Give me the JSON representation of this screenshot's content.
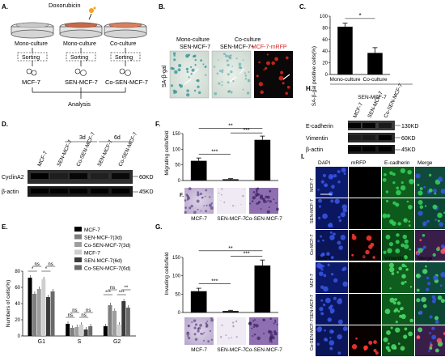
{
  "figure": {
    "panel_letters": {
      "A": "A.",
      "B": "B.",
      "C": "C.",
      "D": "D.",
      "E": "E.",
      "F": "F.",
      "G": "G.",
      "H": "H.",
      "I": "I."
    }
  },
  "panelA": {
    "drug": "Doxorubicin",
    "dish_labels": [
      "Mono-culture",
      "Mono-culture",
      "Co-culture"
    ],
    "sorting": [
      "Sorting",
      "Sorting",
      "Sorting"
    ],
    "cell_labels": [
      "MCF-7",
      "SEN-MCF-7",
      "Co-SEN-MCF-7"
    ],
    "analysis": "Analysis"
  },
  "panelB": {
    "header_mono_line1": "Mono-culture",
    "header_mono_line2": "SEN-MCF-7",
    "header_co_line1": "Co-culture",
    "header_co_line2a": "SEN-MCF-7+",
    "header_co_line2b": "MCF-7-mRFP",
    "ylabel": "SA-β-gal"
  },
  "panelC": {
    "ylabel": "SA-β-gal positive cells(%)",
    "ticks": [
      "0",
      "20",
      "40",
      "60",
      "80",
      "100"
    ],
    "group_label": "SEN-MCF-7",
    "sig": "*",
    "colors": {
      "bar": "#000000"
    }
  },
  "panelD": {
    "lanes": [
      "MCF-7",
      "SEN-MCF-7",
      "Co-SEN-MCF-7",
      "SEN-MCF-7",
      "Co-SEN-MCF-7"
    ],
    "group_3d": "3d",
    "group_6d": "6d",
    "rows": [
      "CyclinA2",
      "β-actin"
    ],
    "kd": [
      "60KD",
      "45KD"
    ]
  },
  "panelH": {
    "lanes": [
      "MCF-7",
      "SEN-MCF-7",
      "Co-SEN-MCF-7"
    ],
    "rows": [
      "E-cadherin",
      "Vimentin",
      "β-actin"
    ],
    "kd": [
      "130KD",
      "60KD",
      "45KD"
    ]
  },
  "panelE": {
    "ylabel": "Numbers of cells(%)",
    "ticks": [
      "0",
      "20",
      "40",
      "60",
      "80"
    ],
    "legend": [
      "MCF-7",
      "SEN-MCF-7(3d)",
      "Co-SEN-MCF-7(3d)",
      "MCF-7",
      "SEN-MCF-7(6d)",
      "Co-SEN-MCF-7(6d)"
    ],
    "colors": [
      "#000000",
      "#7f7f7f",
      "#9e9e9e",
      "#cfcfcf",
      "#3a3a3a",
      "#6a6a6a"
    ],
    "sig_G1": [
      "*",
      "ns",
      "*",
      "ns"
    ],
    "sig_S": [
      "ns",
      "ns",
      "ns",
      "ns"
    ],
    "sig_G2": [
      "***",
      "ns",
      "***",
      "**"
    ]
  },
  "panelF": {
    "ylabel": "Migrating cells/field",
    "ticks": [
      "0",
      "50",
      "100",
      "150"
    ],
    "sig": [
      "**",
      "***",
      "***"
    ],
    "small_label": "F."
  },
  "panelG": {
    "ylabel": "Invading cells/field",
    "ticks": [
      "0",
      "50",
      "100",
      "150"
    ],
    "sig": [
      "**",
      "***",
      "***"
    ]
  },
  "panelI": {
    "top_headers": [
      "DAPI",
      "mRFP",
      "E-cadherin",
      "Merge"
    ],
    "bottom_headers": [
      "DAPI",
      "mRFP",
      "Vimentin",
      "Merge"
    ],
    "row_labels": [
      "MCF-7",
      "SEN-MCF-7",
      "Co-MCF-7"
    ],
    "row_labels_b": [
      "MCF-7",
      "SEN-MCF-7",
      "Co-SEN-MCF-7"
    ]
  },
  "chart_data": [
    {
      "type": "bar",
      "panel": "C",
      "categories": [
        "Mono-culture",
        "Co-culture"
      ],
      "values": [
        82,
        37
      ],
      "errors": [
        6,
        9
      ],
      "ylabel": "SA-β-gal positive cells(%)",
      "ylim": [
        0,
        100
      ]
    },
    {
      "type": "bar",
      "panel": "E",
      "categories": [
        "G1",
        "S",
        "G2"
      ],
      "series": [
        {
          "name": "MCF-7",
          "values": [
            72,
            15,
            12
          ]
        },
        {
          "name": "SEN-MCF-7(3d)",
          "values": [
            52,
            10,
            38
          ]
        },
        {
          "name": "Co-SEN-MCF-7(3d)",
          "values": [
            58,
            11,
            31
          ]
        },
        {
          "name": "MCF-7",
          "values": [
            70,
            14,
            14
          ]
        },
        {
          "name": "SEN-MCF-7(6d)",
          "values": [
            48,
            8,
            43
          ]
        },
        {
          "name": "Co-SEN-MCF-7(6d)",
          "values": [
            55,
            12,
            35
          ]
        }
      ],
      "ylabel": "Numbers of cells(%)",
      "ylim": [
        0,
        80
      ]
    },
    {
      "type": "bar",
      "panel": "F",
      "categories": [
        "MCF-7",
        "SEN-MCF-7",
        "Co-SEN-MCF-7"
      ],
      "values": [
        63,
        4,
        130
      ],
      "errors": [
        9,
        2,
        12
      ],
      "ylabel": "Migrating cells/field",
      "ylim": [
        0,
        150
      ]
    },
    {
      "type": "bar",
      "panel": "G",
      "categories": [
        "MCF-7",
        "SEN-MCF-7",
        "Co-SEN-MCF-7"
      ],
      "values": [
        58,
        4,
        128
      ],
      "errors": [
        8,
        2,
        15
      ],
      "ylabel": "Invading cells/field",
      "ylim": [
        0,
        150
      ]
    }
  ]
}
